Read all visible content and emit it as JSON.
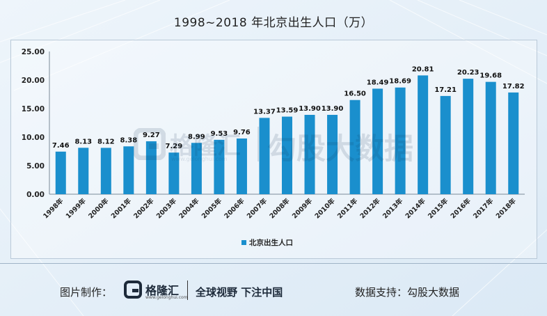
{
  "header": {
    "title": "1998~2018 年北京出生人口（万）"
  },
  "chart_data": {
    "type": "bar",
    "title": "1998~2018 年北京出生人口（万）",
    "categories": [
      "1998年",
      "1999年",
      "2000年",
      "2001年",
      "2002年",
      "2003年",
      "2004年",
      "2005年",
      "2006年",
      "2007年",
      "2008年",
      "2009年",
      "2010年",
      "2011年",
      "2012年",
      "2013年",
      "2014年",
      "2015年",
      "2016年",
      "2017年",
      "2018年"
    ],
    "series": [
      {
        "name": "北京出生人口",
        "values": [
          7.46,
          8.13,
          8.12,
          8.38,
          9.27,
          7.29,
          8.99,
          9.53,
          9.76,
          13.37,
          13.59,
          13.9,
          13.9,
          16.5,
          18.49,
          18.69,
          20.81,
          17.21,
          20.23,
          19.68,
          17.82
        ]
      }
    ],
    "data_labels": [
      "7.46",
      "8.13",
      "8.12",
      "8.38",
      "9.27",
      "7.29",
      "8.99",
      "9.53",
      "9.76",
      "13.37",
      "13.59",
      "13.90",
      "13.90",
      "16.50",
      "18.49",
      "18.69",
      "20.81",
      "17.21",
      "20.23",
      "19.68",
      "17.82"
    ],
    "yticks": [
      "0.00",
      "5.00",
      "10.00",
      "15.00",
      "20.00",
      "25.00"
    ],
    "ylim": [
      0,
      25
    ],
    "xlabel": "",
    "ylabel": "",
    "grid": false,
    "legend": "bottom-center",
    "bar_color": "#1a8fcd"
  },
  "watermark": {
    "brand": "格隆汇",
    "url": "www.gelonghui.com",
    "text": "勾股大数据"
  },
  "footer": {
    "credit_label": "图片制作：",
    "logo_name": "格隆汇",
    "logo_url": "www.gelonghui.com",
    "slogan": "全球视野 下注中国",
    "support": "数据支持：勾股大数据"
  }
}
